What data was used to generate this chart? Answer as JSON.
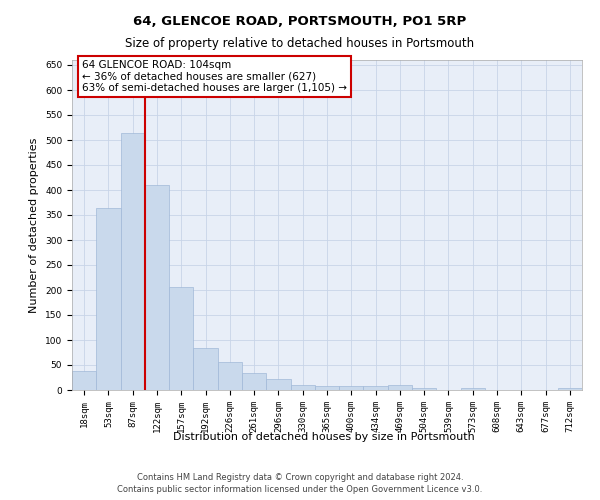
{
  "title": "64, GLENCOE ROAD, PORTSMOUTH, PO1 5RP",
  "subtitle": "Size of property relative to detached houses in Portsmouth",
  "xlabel": "Distribution of detached houses by size in Portsmouth",
  "ylabel": "Number of detached properties",
  "bar_labels": [
    "18sqm",
    "53sqm",
    "87sqm",
    "122sqm",
    "157sqm",
    "192sqm",
    "226sqm",
    "261sqm",
    "296sqm",
    "330sqm",
    "365sqm",
    "400sqm",
    "434sqm",
    "469sqm",
    "504sqm",
    "539sqm",
    "573sqm",
    "608sqm",
    "643sqm",
    "677sqm",
    "712sqm"
  ],
  "bar_values": [
    38,
    365,
    515,
    410,
    207,
    84,
    56,
    35,
    22,
    11,
    8,
    8,
    8,
    10,
    5,
    0,
    5,
    0,
    0,
    0,
    5
  ],
  "bar_color": "#c9d9ec",
  "bar_edgecolor": "#a0b8d8",
  "bar_width": 1.0,
  "property_line_x": 2.5,
  "line_color": "#cc0000",
  "annotation_line1": "64 GLENCOE ROAD: 104sqm",
  "annotation_line2": "← 36% of detached houses are smaller (627)",
  "annotation_line3": "63% of semi-detached houses are larger (1,105) →",
  "annotation_box_edgecolor": "#cc0000",
  "ylim": [
    0,
    660
  ],
  "yticks": [
    0,
    50,
    100,
    150,
    200,
    250,
    300,
    350,
    400,
    450,
    500,
    550,
    600,
    650
  ],
  "grid_color": "#c8d4e8",
  "bg_color": "#e8eef8",
  "footer_line1": "Contains HM Land Registry data © Crown copyright and database right 2024.",
  "footer_line2": "Contains public sector information licensed under the Open Government Licence v3.0.",
  "title_fontsize": 9.5,
  "subtitle_fontsize": 8.5,
  "xlabel_fontsize": 8,
  "ylabel_fontsize": 8,
  "tick_fontsize": 6.5,
  "footer_fontsize": 6,
  "annotation_fontsize": 7.5
}
